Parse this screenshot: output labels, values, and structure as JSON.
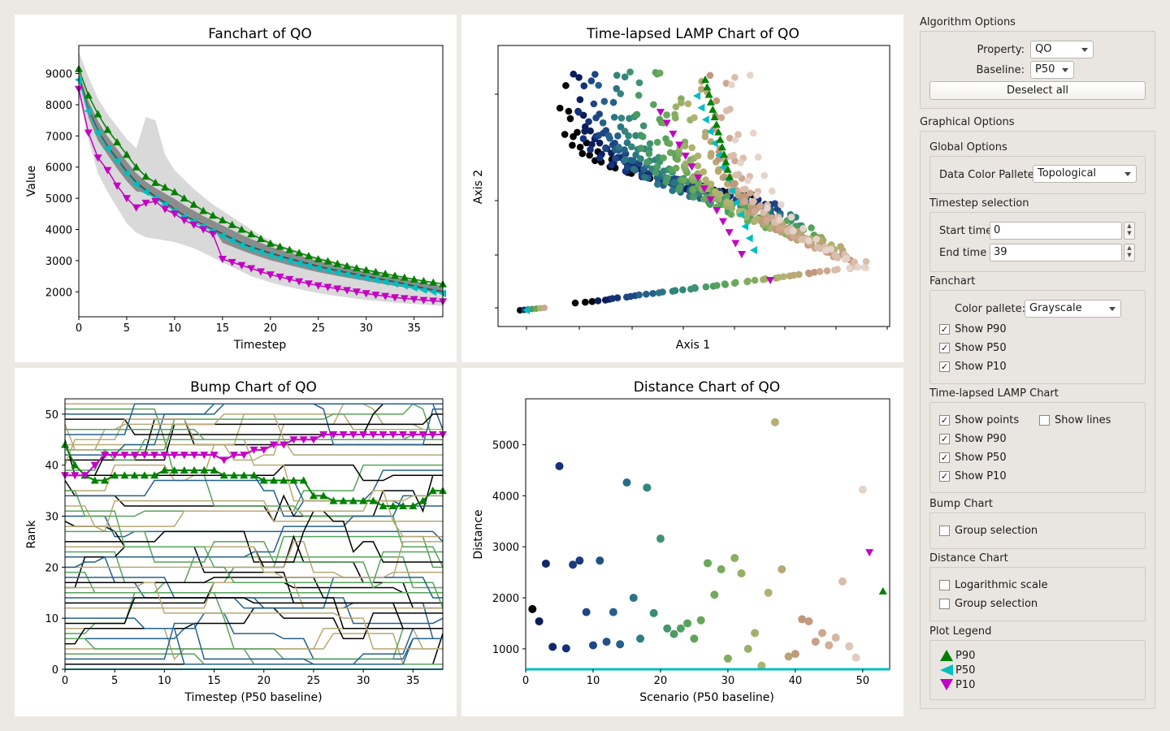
{
  "charts": {
    "fanchart": {
      "title": "Fanchart of QO",
      "xlabel": "Timestep",
      "ylabel": "Value",
      "xticks": [
        "0",
        "5",
        "10",
        "15",
        "20",
        "25",
        "30",
        "35"
      ],
      "yticks": [
        "2000",
        "3000",
        "4000",
        "5000",
        "6000",
        "7000",
        "8000",
        "9000"
      ]
    },
    "lamp": {
      "title": "Time-lapsed LAMP Chart of QO",
      "xlabel": "Axis 1",
      "ylabel": "Axis 2"
    },
    "bump": {
      "title": "Bump Chart of QO",
      "xlabel": "Timestep (P50 baseline)",
      "ylabel": "Rank",
      "xticks": [
        "0",
        "5",
        "10",
        "15",
        "20",
        "25",
        "30",
        "35"
      ],
      "yticks": [
        "0",
        "10",
        "20",
        "30",
        "40",
        "50"
      ]
    },
    "distance": {
      "title": "Distance Chart of QO",
      "xlabel": "Scenario (P50 baseline)",
      "ylabel": "Distance",
      "xticks": [
        "0",
        "10",
        "20",
        "30",
        "40",
        "50"
      ],
      "yticks": [
        "1000",
        "2000",
        "3000",
        "4000",
        "5000"
      ]
    }
  },
  "chart_data": [
    {
      "type": "area",
      "title": "Fanchart of QO",
      "xlabel": "Timestep",
      "ylabel": "Value",
      "xlim": [
        0,
        38
      ],
      "ylim": [
        1200,
        9900
      ],
      "x": [
        0,
        1,
        2,
        3,
        4,
        5,
        6,
        7,
        8,
        9,
        10,
        11,
        12,
        13,
        14,
        15,
        16,
        17,
        18,
        19,
        20,
        21,
        22,
        23,
        24,
        25,
        26,
        27,
        28,
        29,
        30,
        31,
        32,
        33,
        34,
        35,
        36,
        37,
        38
      ],
      "series": [
        {
          "name": "P90",
          "values": [
            9150,
            8300,
            7700,
            7200,
            6800,
            6400,
            6000,
            5700,
            5500,
            5350,
            5200,
            5000,
            4800,
            4600,
            4450,
            4300,
            4150,
            4000,
            3850,
            3700,
            3550,
            3450,
            3350,
            3250,
            3150,
            3050,
            2980,
            2900,
            2830,
            2760,
            2700,
            2640,
            2580,
            2520,
            2460,
            2400,
            2350,
            2300,
            2250
          ]
        },
        {
          "name": "P50",
          "values": [
            8800,
            7800,
            7100,
            6600,
            6200,
            5800,
            5450,
            5200,
            5000,
            4800,
            4600,
            4400,
            4250,
            4100,
            3950,
            3800,
            3650,
            3500,
            3380,
            3280,
            3180,
            3090,
            3000,
            2920,
            2840,
            2760,
            2690,
            2620,
            2560,
            2500,
            2440,
            2380,
            2320,
            2260,
            2200,
            2130,
            2060,
            2000,
            1950
          ]
        },
        {
          "name": "P10",
          "values": [
            8500,
            7100,
            6300,
            5900,
            5400,
            5000,
            4700,
            4850,
            4900,
            4650,
            4500,
            4300,
            4150,
            4000,
            3850,
            3050,
            2950,
            2850,
            2750,
            2650,
            2550,
            2480,
            2400,
            2330,
            2260,
            2200,
            2150,
            2100,
            2050,
            2000,
            1950,
            1900,
            1860,
            1820,
            1790,
            1760,
            1730,
            1710,
            1690
          ]
        },
        {
          "name": "max",
          "values": [
            9700,
            8900,
            8200,
            7700,
            7300,
            6900,
            6600,
            7600,
            7500,
            6400,
            5900,
            5600,
            5300,
            5050,
            4800,
            4600,
            4400,
            4200,
            4000,
            3800,
            3650,
            3500,
            3400,
            3300,
            3200,
            3120,
            3040,
            2960,
            2880,
            2800,
            2730,
            2660,
            2590,
            2520,
            2460,
            2400,
            2340,
            2280,
            2220
          ]
        },
        {
          "name": "min",
          "values": [
            8300,
            6900,
            5800,
            5200,
            4700,
            4200,
            3900,
            3750,
            3700,
            3650,
            3600,
            3500,
            3400,
            3250,
            3100,
            2950,
            2800,
            2650,
            2500,
            2400,
            2300,
            2220,
            2150,
            2080,
            2020,
            1960,
            1910,
            1860,
            1820,
            1780,
            1740,
            1710,
            1680,
            1650,
            1630,
            1610,
            1590,
            1570,
            1550
          ]
        }
      ]
    },
    {
      "type": "scatter",
      "title": "Time-lapsed LAMP Chart of QO",
      "xlabel": "Axis 1",
      "ylabel": "Axis 2",
      "note": "trajectories of scenarios over timesteps; axes unlabeled",
      "series_count": 50
    },
    {
      "type": "line",
      "title": "Bump Chart of QO",
      "xlabel": "Timestep (P50 baseline)",
      "ylabel": "Rank",
      "xlim": [
        0,
        38
      ],
      "ylim": [
        0,
        53
      ],
      "x": [
        0,
        1,
        2,
        3,
        4,
        5,
        6,
        7,
        8,
        9,
        10,
        11,
        12,
        13,
        14,
        15,
        16,
        17,
        18,
        19,
        20,
        21,
        22,
        23,
        24,
        25,
        26,
        27,
        28,
        29,
        30,
        31,
        32,
        33,
        34,
        35,
        36,
        37,
        38
      ],
      "series": [
        {
          "name": "P90",
          "values": [
            44,
            40,
            38,
            37,
            37,
            38,
            38,
            38,
            38,
            38,
            39,
            39,
            39,
            39,
            39,
            39,
            38,
            38,
            38,
            38,
            37,
            37,
            37,
            37,
            37,
            34,
            34,
            33,
            33,
            33,
            33,
            33,
            32,
            32,
            32,
            32,
            33,
            35,
            35
          ]
        },
        {
          "name": "P50",
          "values": [
            0,
            0,
            0,
            0,
            0,
            0,
            0,
            0,
            0,
            0,
            0,
            0,
            0,
            0,
            0,
            0,
            0,
            0,
            0,
            0,
            0,
            0,
            0,
            0,
            0,
            0,
            0,
            0,
            0,
            0,
            0,
            0,
            0,
            0,
            0,
            0,
            0,
            0,
            0
          ]
        },
        {
          "name": "P10",
          "values": [
            38,
            38,
            38,
            40,
            42,
            42,
            42,
            42,
            42,
            42,
            42,
            42,
            42,
            42,
            42,
            42,
            41,
            42,
            42,
            43,
            43,
            44,
            44,
            45,
            45,
            45,
            46,
            46,
            46,
            46,
            46,
            46,
            46,
            46,
            46,
            46,
            46,
            46,
            46
          ]
        }
      ]
    },
    {
      "type": "scatter",
      "title": "Distance Chart of QO",
      "xlabel": "Scenario (P50 baseline)",
      "ylabel": "Distance",
      "xlim": [
        0,
        54
      ],
      "ylim": [
        600,
        5900
      ],
      "points": [
        {
          "x": 1,
          "y": 1780,
          "c": "#000000"
        },
        {
          "x": 2,
          "y": 1540,
          "c": "#0b1d5c"
        },
        {
          "x": 3,
          "y": 2670,
          "c": "#10276e"
        },
        {
          "x": 4,
          "y": 1040,
          "c": "#10276e"
        },
        {
          "x": 5,
          "y": 4580,
          "c": "#14317a"
        },
        {
          "x": 6,
          "y": 1010,
          "c": "#14317a"
        },
        {
          "x": 7,
          "y": 2650,
          "c": "#1a3a80"
        },
        {
          "x": 8,
          "y": 2730,
          "c": "#1a3a80"
        },
        {
          "x": 9,
          "y": 1720,
          "c": "#1e4684"
        },
        {
          "x": 10,
          "y": 1070,
          "c": "#1e4684"
        },
        {
          "x": 11,
          "y": 2730,
          "c": "#215287"
        },
        {
          "x": 12,
          "y": 1140,
          "c": "#215287"
        },
        {
          "x": 13,
          "y": 1720,
          "c": "#24608a"
        },
        {
          "x": 14,
          "y": 1090,
          "c": "#24608a"
        },
        {
          "x": 15,
          "y": 4260,
          "c": "#286c88"
        },
        {
          "x": 16,
          "y": 2000,
          "c": "#2b7584"
        },
        {
          "x": 17,
          "y": 1200,
          "c": "#2f7e80"
        },
        {
          "x": 18,
          "y": 4160,
          "c": "#33857b"
        },
        {
          "x": 19,
          "y": 1700,
          "c": "#388c76"
        },
        {
          "x": 20,
          "y": 3160,
          "c": "#3d9270"
        },
        {
          "x": 21,
          "y": 1400,
          "c": "#44976b"
        },
        {
          "x": 22,
          "y": 1290,
          "c": "#4a9b65"
        },
        {
          "x": 23,
          "y": 1400,
          "c": "#51a060"
        },
        {
          "x": 24,
          "y": 1500,
          "c": "#58a35c"
        },
        {
          "x": 25,
          "y": 1200,
          "c": "#5ea55a"
        },
        {
          "x": 26,
          "y": 1560,
          "c": "#64a758"
        },
        {
          "x": 27,
          "y": 2680,
          "c": "#6ba859"
        },
        {
          "x": 28,
          "y": 2060,
          "c": "#72aa5b"
        },
        {
          "x": 29,
          "y": 2560,
          "c": "#7aab5d"
        },
        {
          "x": 30,
          "y": 810,
          "c": "#82ad60"
        },
        {
          "x": 31,
          "y": 2780,
          "c": "#8aae63"
        },
        {
          "x": 32,
          "y": 2480,
          "c": "#92b066"
        },
        {
          "x": 33,
          "y": 1000,
          "c": "#9ab169"
        },
        {
          "x": 34,
          "y": 1310,
          "c": "#a2b26c"
        },
        {
          "x": 35,
          "y": 670,
          "c": "#a9b36e"
        },
        {
          "x": 36,
          "y": 2100,
          "c": "#b1b270"
        },
        {
          "x": 37,
          "y": 5440,
          "c": "#b5ae72"
        },
        {
          "x": 38,
          "y": 2560,
          "c": "#b8a874"
        },
        {
          "x": 39,
          "y": 850,
          "c": "#bba276"
        },
        {
          "x": 40,
          "y": 900,
          "c": "#bf9c78"
        },
        {
          "x": 41,
          "y": 1580,
          "c": "#c2987c"
        },
        {
          "x": 42,
          "y": 1540,
          "c": "#c59a80"
        },
        {
          "x": 43,
          "y": 1140,
          "c": "#c9a088"
        },
        {
          "x": 44,
          "y": 1310,
          "c": "#cda790"
        },
        {
          "x": 45,
          "y": 1070,
          "c": "#d1ae98"
        },
        {
          "x": 46,
          "y": 1220,
          "c": "#d5b6a2"
        },
        {
          "x": 47,
          "y": 2320,
          "c": "#d9beac"
        },
        {
          "x": 48,
          "y": 1050,
          "c": "#ddc6b6"
        },
        {
          "x": 49,
          "y": 830,
          "c": "#e1cdc0"
        },
        {
          "x": 50,
          "y": 4120,
          "c": "#e6d3ca"
        }
      ],
      "markers": [
        {
          "name": "P10",
          "x": 51,
          "y": 2890,
          "c": "#c400c4"
        },
        {
          "name": "P90",
          "x": 53,
          "y": 2130,
          "c": "#008000"
        },
        {
          "name": "P50",
          "y": 600,
          "c": "#00bfbf"
        }
      ]
    }
  ],
  "options": {
    "algorithm": {
      "title": "Algorithm Options",
      "property_label": "Property:",
      "property_value": "QO",
      "baseline_label": "Baseline:",
      "baseline_value": "P50",
      "deselect_label": "Deselect all"
    },
    "graphical": {
      "title": "Graphical Options",
      "global": {
        "title": "Global Options",
        "palette_label": "Data Color Pallete:",
        "palette_value": "Topological"
      },
      "timestep": {
        "title": "Timestep selection",
        "start_label": "Start time",
        "start_value": "0",
        "end_label": "End time",
        "end_value": "39"
      },
      "fanchart": {
        "title": "Fanchart",
        "palette_label": "Color pallete:",
        "palette_value": "Grayscale",
        "show_p90": "Show P90",
        "show_p50": "Show P50",
        "show_p10": "Show P10"
      },
      "lamp": {
        "title": "Time-lapsed LAMP Chart",
        "show_points": "Show points",
        "show_lines": "Show lines",
        "show_p90": "Show P90",
        "show_p50": "Show P50",
        "show_p10": "Show P10"
      },
      "bump": {
        "title": "Bump Chart",
        "group_selection": "Group selection"
      },
      "distance": {
        "title": "Distance Chart",
        "log_scale": "Logarithmic scale",
        "group_selection": "Group selection"
      },
      "legend": {
        "title": "Plot Legend",
        "p90": "P90",
        "p50": "P50",
        "p10": "P10"
      }
    },
    "check_mark": "✓"
  },
  "colors": {
    "p90": "#008000",
    "p50": "#00bfbf",
    "p10": "#c400c4",
    "palette": [
      "#000000",
      "#0b1d5c",
      "#14317a",
      "#1e4684",
      "#24608a",
      "#2b7584",
      "#33857b",
      "#3d9270",
      "#4a9b65",
      "#58a35c",
      "#6ba859",
      "#82ad60",
      "#9ab169",
      "#b1b270",
      "#b8a874",
      "#c2987c",
      "#cda790",
      "#d9beac",
      "#e6d3ca"
    ]
  }
}
